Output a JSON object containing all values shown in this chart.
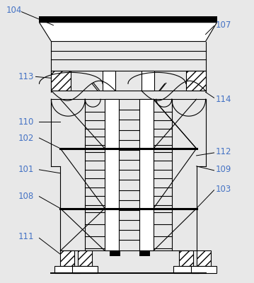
{
  "background_color": "#e8e8e8",
  "line_color": "#000000",
  "label_color": "#4472c4",
  "lw_thin": 0.8,
  "lw_med": 1.4,
  "lw_thick": 2.2
}
